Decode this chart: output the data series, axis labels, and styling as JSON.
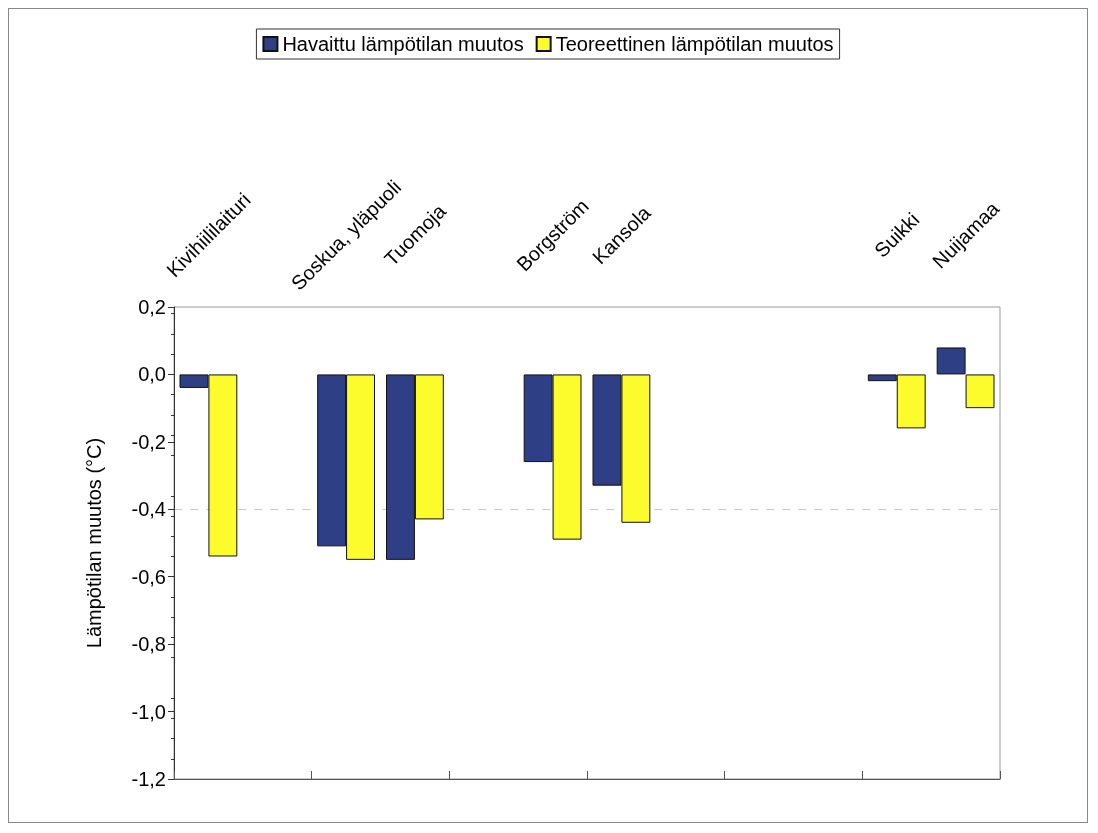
{
  "chart_data": {
    "type": "bar",
    "ylabel": "Lämpötilan muutos (°C)",
    "categories": [
      "Kivihiililaituri",
      null,
      "Soskua, yläpuoli",
      "Tuomoja",
      null,
      "Borgström",
      "Kansola",
      null,
      null,
      null,
      "Suikki",
      "Nuijamaa"
    ],
    "series": [
      {
        "name": "Havaittu lämpötilan muutos",
        "color": "#2e3f85",
        "values": [
          -0.04,
          null,
          -0.51,
          -0.55,
          null,
          -0.26,
          -0.33,
          null,
          null,
          null,
          -0.02,
          0.08
        ]
      },
      {
        "name": "Teoreettinen lämpötilan muutos",
        "color": "#fcfc2c",
        "values": [
          -0.54,
          null,
          -0.55,
          -0.43,
          null,
          -0.49,
          -0.44,
          null,
          null,
          null,
          -0.16,
          -0.1
        ]
      }
    ],
    "ylim": [
      -1.2,
      0.2
    ],
    "yticks": [
      {
        "value": 0.2,
        "label": "0,2"
      },
      {
        "value": 0,
        "label": "0,0"
      },
      {
        "value": -0.2,
        "label": "-0,2"
      },
      {
        "value": -0.4,
        "label": "-0,4"
      },
      {
        "value": -0.6,
        "label": "-0,6"
      },
      {
        "value": -0.8,
        "label": "-0,8"
      },
      {
        "value": -1,
        "label": "-1,0"
      },
      {
        "value": -1.2,
        "label": "-1,2"
      }
    ],
    "ref_lines": [
      {
        "axis": "y",
        "value": -0.4,
        "color": "#c8c8c8",
        "line_style": "dashed"
      }
    ],
    "grid": false,
    "legend": "top"
  }
}
